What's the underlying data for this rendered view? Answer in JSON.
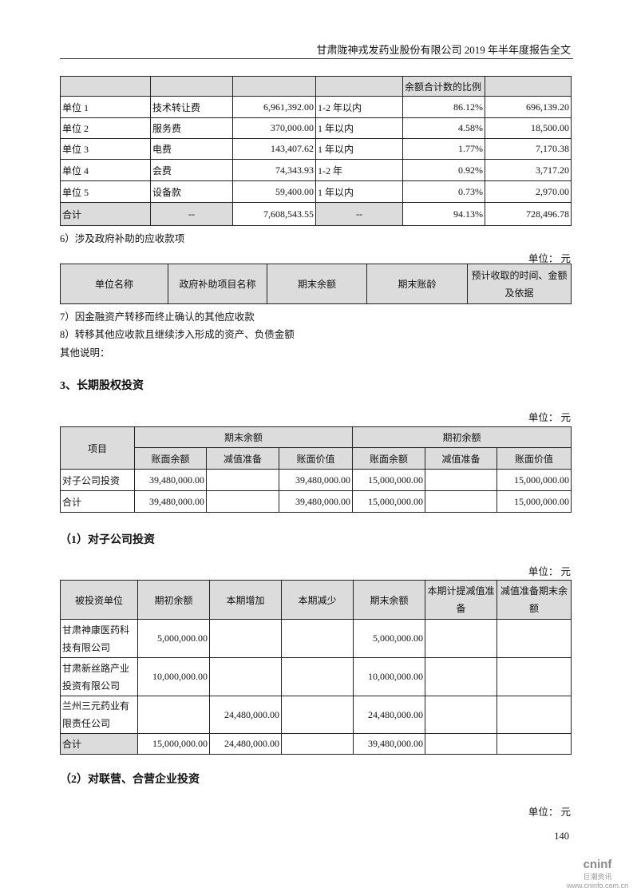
{
  "header": {
    "title": "甘肃陇神戎发药业股份有限公司 2019 年半年度报告全文"
  },
  "table1": {
    "header": [
      "",
      "",
      "",
      "",
      "余额合计数的比例",
      ""
    ],
    "rows": [
      [
        "单位 1",
        "技术转让费",
        "6,961,392.00",
        "1-2 年以内",
        "86.12%",
        "696,139.20"
      ],
      [
        "单位 2",
        "服务费",
        "370,000.00",
        "1 年以内",
        "4.58%",
        "18,500.00"
      ],
      [
        "单位 3",
        "电费",
        "143,407.62",
        "1 年以内",
        "1.77%",
        "7,170.38"
      ],
      [
        "单位 4",
        "会费",
        "74,343.93",
        "1-2 年",
        "0.92%",
        "3,717.20"
      ],
      [
        "单位 5",
        "设备款",
        "59,400.00",
        "1 年以内",
        "0.73%",
        "2,970.00"
      ]
    ],
    "total": [
      "合计",
      "--",
      "7,608,543.55",
      "--",
      "94.13%",
      "728,496.78"
    ]
  },
  "section6": "6）涉及政府补助的应收款项",
  "unit": "单位： 元",
  "table2": {
    "header": [
      "单位名称",
      "政府补助项目名称",
      "期末余额",
      "期末账龄",
      "预计收取的时间、金额及依据"
    ]
  },
  "section7": "7）因金融资产转移而终止确认的其他应收款",
  "section8": "8）转移其他应收款且继续涉入形成的资产、负债金额",
  "other_notes": "其他说明：",
  "heading3": "3、长期股权投资",
  "table3": {
    "item": "项目",
    "end": "期末余额",
    "begin": "期初余额",
    "sub": [
      "账面余额",
      "减值准备",
      "账面价值",
      "账面余额",
      "减值准备",
      "账面价值"
    ],
    "rows": [
      [
        "对子公司投资",
        "39,480,000.00",
        "",
        "39,480,000.00",
        "15,000,000.00",
        "",
        "15,000,000.00"
      ],
      [
        "合计",
        "39,480,000.00",
        "",
        "39,480,000.00",
        "15,000,000.00",
        "",
        "15,000,000.00"
      ]
    ]
  },
  "heading_sub1": "（1）对子公司投资",
  "table4": {
    "header": [
      "被投资单位",
      "期初余额",
      "本期增加",
      "本期减少",
      "期末余额",
      "本期计提减值准备",
      "减值准备期末余额"
    ],
    "rows": [
      [
        "甘肃神康医药科技有限公司",
        "5,000,000.00",
        "",
        "",
        "5,000,000.00",
        "",
        ""
      ],
      [
        "甘肃新丝路产业投资有限公司",
        "10,000,000.00",
        "",
        "",
        "10,000,000.00",
        "",
        ""
      ],
      [
        "兰州三元药业有限责任公司",
        "",
        "24,480,000.00",
        "",
        "24,480,000.00",
        "",
        ""
      ]
    ],
    "total": [
      "合计",
      "15,000,000.00",
      "24,480,000.00",
      "",
      "39,480,000.00",
      "",
      ""
    ]
  },
  "heading_sub2": "（2）对联营、合营企业投资",
  "page_number": "140",
  "watermark": {
    "brand": "cninf",
    "cn": "巨潮资讯",
    "url": "www.cninfo.com.cn"
  }
}
